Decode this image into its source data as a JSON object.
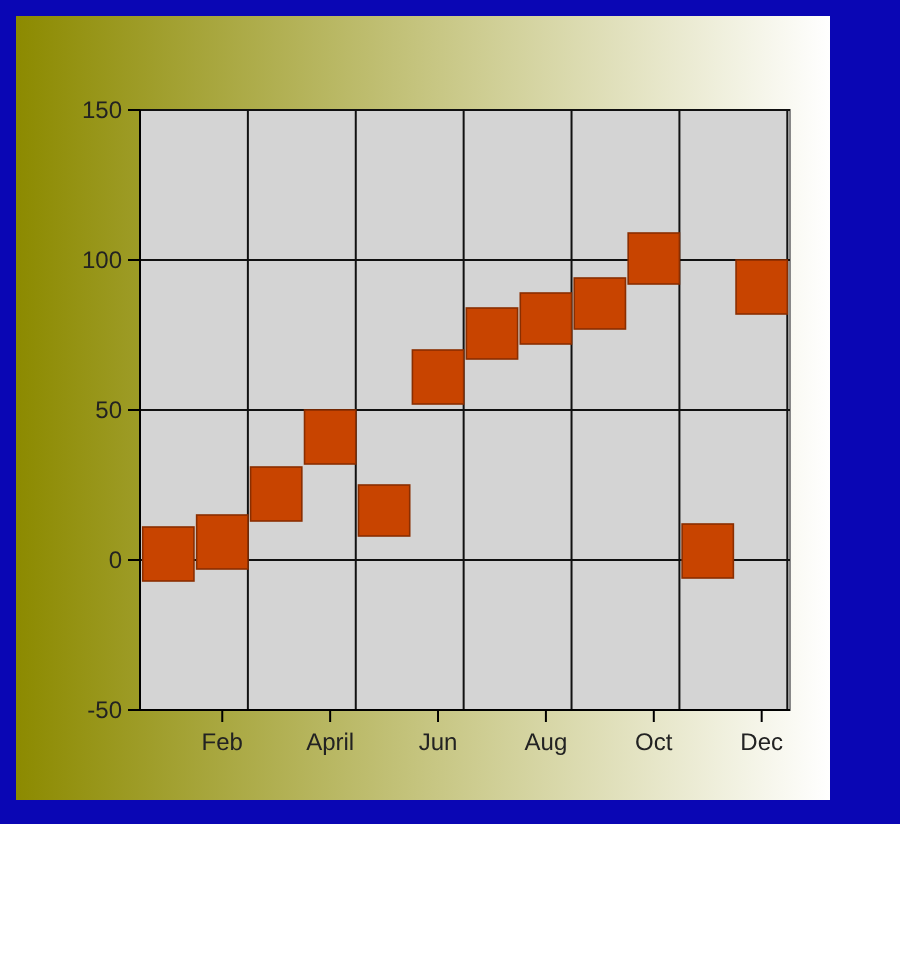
{
  "chart_data": {
    "type": "bar",
    "categories": [
      null,
      "Feb",
      null,
      "April",
      null,
      "Jun",
      null,
      "Aug",
      null,
      "Oct",
      null,
      "Dec"
    ],
    "base": [
      -7,
      -3,
      13,
      32,
      8,
      52,
      67,
      72,
      77,
      92,
      -6,
      82
    ],
    "values": [
      18,
      18,
      18,
      18,
      17,
      18,
      17,
      17,
      17,
      17,
      18,
      18
    ],
    "color": "#c84400",
    "ylim": [
      -50,
      150
    ],
    "yticks": [
      -50,
      0,
      50,
      100,
      150
    ],
    "grid": true
  }
}
